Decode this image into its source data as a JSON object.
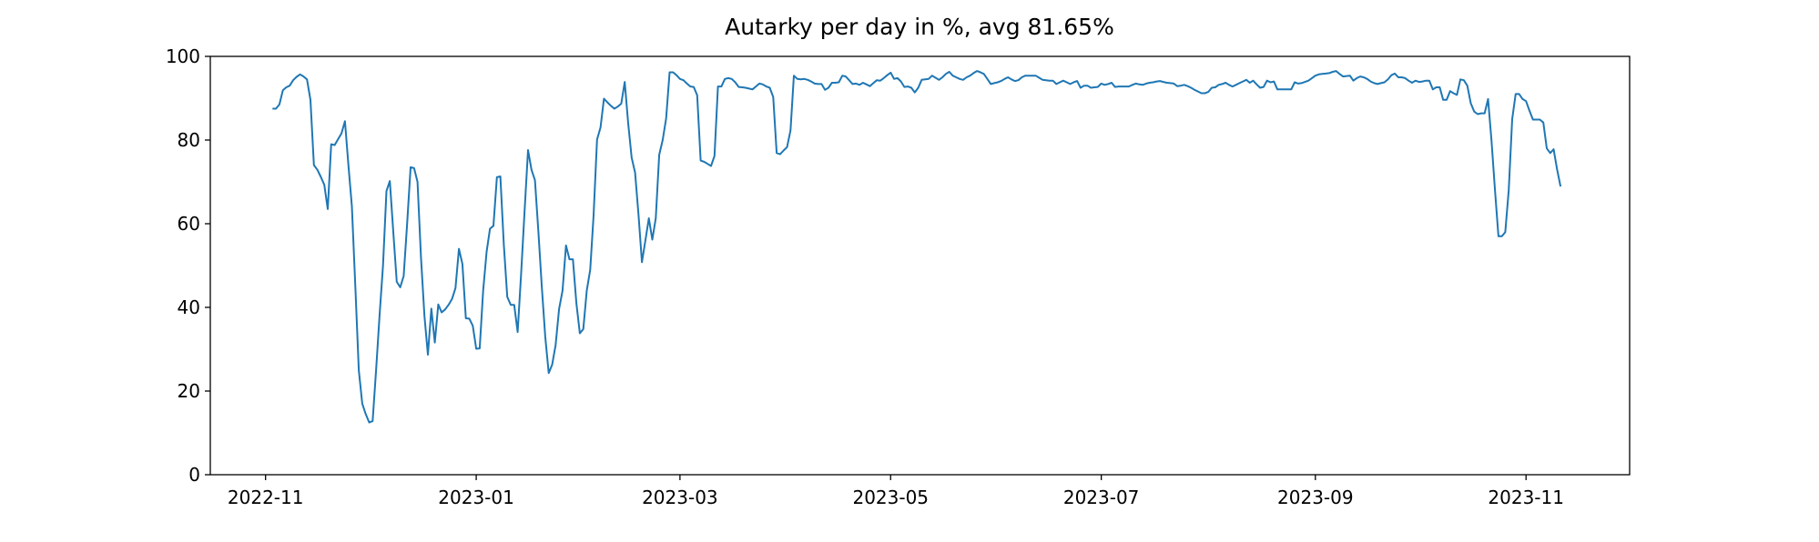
{
  "chart_data": {
    "type": "line",
    "title": "Autarky per day in %, avg 81.65%",
    "xlabel": "",
    "ylabel": "",
    "ylim": [
      0,
      100
    ],
    "xlim": [
      "2022-10-16",
      "2023-12-01"
    ],
    "grid": false,
    "line_color": "#1f77b4",
    "x_ticks": [
      {
        "date": "2022-11-01",
        "label": "2022-11"
      },
      {
        "date": "2023-01-01",
        "label": "2023-01"
      },
      {
        "date": "2023-03-01",
        "label": "2023-03"
      },
      {
        "date": "2023-05-01",
        "label": "2023-05"
      },
      {
        "date": "2023-07-01",
        "label": "2023-07"
      },
      {
        "date": "2023-09-01",
        "label": "2023-09"
      },
      {
        "date": "2023-11-01",
        "label": "2023-11"
      }
    ],
    "y_ticks": [
      {
        "value": 0,
        "label": "0"
      },
      {
        "value": 20,
        "label": "20"
      },
      {
        "value": 40,
        "label": "40"
      },
      {
        "value": 60,
        "label": "60"
      },
      {
        "value": 80,
        "label": "80"
      },
      {
        "value": 100,
        "label": "100"
      }
    ],
    "x": [
      "2022-11-03",
      "2022-11-04",
      "2022-11-05",
      "2022-11-06",
      "2022-11-07",
      "2022-11-08",
      "2022-11-09",
      "2022-11-10",
      "2022-11-11",
      "2022-11-12",
      "2022-11-13",
      "2022-11-14",
      "2022-11-15",
      "2022-11-16",
      "2022-11-17",
      "2022-11-18",
      "2022-11-19",
      "2022-11-20",
      "2022-11-21",
      "2022-11-22",
      "2022-11-23",
      "2022-11-24",
      "2022-11-25",
      "2022-11-26",
      "2022-11-27",
      "2022-11-28",
      "2022-11-29",
      "2022-11-30",
      "2022-12-01",
      "2022-12-02",
      "2022-12-03",
      "2022-12-04",
      "2022-12-05",
      "2022-12-06",
      "2022-12-07",
      "2022-12-08",
      "2022-12-09",
      "2022-12-10",
      "2022-12-11",
      "2022-12-12",
      "2022-12-13",
      "2022-12-14",
      "2022-12-15",
      "2022-12-16",
      "2022-12-17",
      "2022-12-18",
      "2022-12-19",
      "2022-12-20",
      "2022-12-21",
      "2022-12-22",
      "2022-12-23",
      "2022-12-24",
      "2022-12-25",
      "2022-12-26",
      "2022-12-27",
      "2022-12-28",
      "2022-12-29",
      "2022-12-30",
      "2022-12-31",
      "2023-01-01",
      "2023-01-02",
      "2023-01-03",
      "2023-01-04",
      "2023-01-05",
      "2023-01-06",
      "2023-01-07",
      "2023-01-08",
      "2023-01-09",
      "2023-01-10",
      "2023-01-11",
      "2023-01-12",
      "2023-01-13",
      "2023-01-14",
      "2023-01-15",
      "2023-01-16",
      "2023-01-17",
      "2023-01-18",
      "2023-01-19",
      "2023-01-20",
      "2023-01-21",
      "2023-01-22",
      "2023-01-23",
      "2023-01-24",
      "2023-01-25",
      "2023-01-26",
      "2023-01-27",
      "2023-01-28",
      "2023-01-29",
      "2023-01-30",
      "2023-01-31",
      "2023-02-01",
      "2023-02-02",
      "2023-02-03",
      "2023-02-04",
      "2023-02-05",
      "2023-02-06",
      "2023-02-07",
      "2023-02-08",
      "2023-02-09",
      "2023-02-10",
      "2023-02-11",
      "2023-02-12",
      "2023-02-13",
      "2023-02-14",
      "2023-02-15",
      "2023-02-16",
      "2023-02-17",
      "2023-02-18",
      "2023-02-19",
      "2023-02-20",
      "2023-02-21",
      "2023-02-22",
      "2023-02-23",
      "2023-02-24",
      "2023-02-25",
      "2023-02-26",
      "2023-02-27",
      "2023-02-28",
      "2023-03-01",
      "2023-03-02",
      "2023-03-03",
      "2023-03-04",
      "2023-03-05",
      "2023-03-06",
      "2023-03-07",
      "2023-03-08",
      "2023-03-09",
      "2023-03-10",
      "2023-03-11",
      "2023-03-12",
      "2023-03-13",
      "2023-03-14",
      "2023-03-15",
      "2023-03-16",
      "2023-03-17",
      "2023-03-18",
      "2023-03-19",
      "2023-03-20",
      "2023-03-21",
      "2023-03-22",
      "2023-03-23",
      "2023-03-24",
      "2023-03-25",
      "2023-03-26",
      "2023-03-27",
      "2023-03-28",
      "2023-03-29",
      "2023-03-30",
      "2023-03-31",
      "2023-04-01",
      "2023-04-02",
      "2023-04-03",
      "2023-04-04",
      "2023-04-05",
      "2023-04-06",
      "2023-04-07",
      "2023-04-08",
      "2023-04-09",
      "2023-04-10",
      "2023-04-11",
      "2023-04-12",
      "2023-04-13",
      "2023-04-14",
      "2023-04-15",
      "2023-04-16",
      "2023-04-17",
      "2023-04-18",
      "2023-04-19",
      "2023-04-20",
      "2023-04-21",
      "2023-04-22",
      "2023-04-23",
      "2023-04-24",
      "2023-04-25",
      "2023-04-26",
      "2023-04-27",
      "2023-04-28",
      "2023-04-29",
      "2023-04-30",
      "2023-05-01",
      "2023-05-02",
      "2023-05-03",
      "2023-05-04",
      "2023-05-05",
      "2023-05-06",
      "2023-05-07",
      "2023-05-08",
      "2023-05-09",
      "2023-05-10",
      "2023-05-11",
      "2023-05-12",
      "2023-05-13",
      "2023-05-14",
      "2023-05-15",
      "2023-05-16",
      "2023-05-17",
      "2023-05-18",
      "2023-05-19",
      "2023-05-20",
      "2023-05-21",
      "2023-05-22",
      "2023-05-23",
      "2023-05-24",
      "2023-05-25",
      "2023-05-26",
      "2023-05-27",
      "2023-05-28",
      "2023-05-29",
      "2023-05-30",
      "2023-05-31",
      "2023-06-01",
      "2023-06-02",
      "2023-06-03",
      "2023-06-04",
      "2023-06-05",
      "2023-06-06",
      "2023-06-07",
      "2023-06-08",
      "2023-06-09",
      "2023-06-10",
      "2023-06-11",
      "2023-06-12",
      "2023-06-13",
      "2023-06-14",
      "2023-06-15",
      "2023-06-16",
      "2023-06-17",
      "2023-06-18",
      "2023-06-19",
      "2023-06-20",
      "2023-06-21",
      "2023-06-22",
      "2023-06-23",
      "2023-06-24",
      "2023-06-25",
      "2023-06-26",
      "2023-06-27",
      "2023-06-28",
      "2023-06-29",
      "2023-06-30",
      "2023-07-01",
      "2023-07-02",
      "2023-07-03",
      "2023-07-04",
      "2023-07-05",
      "2023-07-06",
      "2023-07-07",
      "2023-07-08",
      "2023-07-09",
      "2023-07-10",
      "2023-07-11",
      "2023-07-12",
      "2023-07-13",
      "2023-07-14",
      "2023-07-15",
      "2023-07-16",
      "2023-07-17",
      "2023-07-18",
      "2023-07-19",
      "2023-07-20",
      "2023-07-21",
      "2023-07-22",
      "2023-07-23",
      "2023-07-24",
      "2023-07-25",
      "2023-07-26",
      "2023-07-27",
      "2023-07-28",
      "2023-07-29",
      "2023-07-30",
      "2023-07-31",
      "2023-08-01",
      "2023-08-02",
      "2023-08-03",
      "2023-08-04",
      "2023-08-05",
      "2023-08-06",
      "2023-08-07",
      "2023-08-08",
      "2023-08-09",
      "2023-08-10",
      "2023-08-11",
      "2023-08-12",
      "2023-08-13",
      "2023-08-14",
      "2023-08-15",
      "2023-08-16",
      "2023-08-17",
      "2023-08-18",
      "2023-08-19",
      "2023-08-20",
      "2023-08-21",
      "2023-08-22",
      "2023-08-23",
      "2023-08-24",
      "2023-08-25",
      "2023-08-26",
      "2023-08-27",
      "2023-08-28",
      "2023-08-29",
      "2023-08-30",
      "2023-08-31",
      "2023-09-01",
      "2023-09-02",
      "2023-09-03",
      "2023-09-04",
      "2023-09-05",
      "2023-09-06",
      "2023-09-07",
      "2023-09-08",
      "2023-09-09",
      "2023-09-10",
      "2023-09-11",
      "2023-09-12",
      "2023-09-13",
      "2023-09-14",
      "2023-09-15",
      "2023-09-16",
      "2023-09-17",
      "2023-09-18",
      "2023-09-19",
      "2023-09-20",
      "2023-09-21",
      "2023-09-22",
      "2023-09-23",
      "2023-09-24",
      "2023-09-25",
      "2023-09-26",
      "2023-09-27",
      "2023-09-28",
      "2023-09-29",
      "2023-09-30",
      "2023-10-01",
      "2023-10-02",
      "2023-10-03",
      "2023-10-04",
      "2023-10-05",
      "2023-10-06",
      "2023-10-07",
      "2023-10-08",
      "2023-10-09",
      "2023-10-10",
      "2023-10-11",
      "2023-10-12",
      "2023-10-13",
      "2023-10-14",
      "2023-10-15",
      "2023-10-16",
      "2023-10-17",
      "2023-10-18",
      "2023-10-19",
      "2023-10-20",
      "2023-10-21",
      "2023-10-22",
      "2023-10-23",
      "2023-10-24",
      "2023-10-25",
      "2023-10-26",
      "2023-10-27",
      "2023-10-28",
      "2023-10-29",
      "2023-10-30",
      "2023-10-31",
      "2023-11-01",
      "2023-11-02",
      "2023-11-03",
      "2023-11-04",
      "2023-11-05",
      "2023-11-06",
      "2023-11-07",
      "2023-11-08",
      "2023-11-09",
      "2023-11-10",
      "2023-11-11"
    ],
    "y": [
      87.5,
      87.5,
      88.5,
      91.9,
      92.6,
      93,
      94.3,
      95.1,
      95.7,
      95.2,
      94.5,
      89.6,
      74,
      72.9,
      71.2,
      69.3,
      63.5,
      79,
      78.8,
      80.2,
      81.6,
      84.5,
      74,
      64.2,
      45,
      25,
      17,
      14.5,
      12.5,
      12.8,
      25,
      38,
      50,
      67.8,
      70.2,
      58,
      46.1,
      44.8,
      47.5,
      60,
      73.5,
      73.3,
      70,
      52,
      38,
      28.7,
      39.7,
      31.6,
      40.7,
      38.8,
      39.5,
      40.6,
      42,
      44.6,
      54,
      50.4,
      37.4,
      37.3,
      35.6,
      30.1,
      30.2,
      44,
      53.3,
      58.8,
      59.5,
      71.1,
      71.3,
      55,
      42.5,
      40.6,
      40.6,
      34.1,
      48,
      63,
      77.6,
      72.9,
      70.4,
      58,
      45,
      33,
      24.3,
      26.3,
      31,
      39.6,
      44,
      54.8,
      51.5,
      51.5,
      41,
      33.8,
      34.8,
      44,
      49,
      62,
      80.1,
      83,
      89.9,
      89,
      88.2,
      87.5,
      88,
      88.7,
      93.9,
      84,
      75.8,
      72.2,
      62,
      50.8,
      56,
      61.3,
      56.2,
      61.3,
      76.5,
      80,
      85.2,
      96.2,
      96.2,
      95.5,
      94.6,
      94.3,
      93.5,
      92.8,
      92.7,
      90.7,
      75.1,
      74.8,
      74.3,
      73.8,
      76.2,
      92.8,
      92.8,
      94.6,
      94.8,
      94.6,
      93.8,
      92.7,
      92.6,
      92.5,
      92.3,
      92.1,
      92.8,
      93.5,
      93.3,
      92.8,
      92.5,
      90.3,
      76.9,
      76.6,
      77.5,
      78.3,
      82.3,
      95.4,
      94.6,
      94.5,
      94.6,
      94.4,
      94,
      93.5,
      93.4,
      93.4,
      92,
      92.5,
      93.7,
      93.7,
      93.8,
      95.4,
      95.2,
      94.3,
      93.4,
      93.5,
      93.2,
      93.7,
      93.3,
      92.9,
      93.6,
      94.3,
      94.2,
      94.8,
      95.5,
      96.1,
      94.6,
      94.8,
      94,
      92.7,
      92.8,
      92.5,
      91.4,
      92.5,
      94.4,
      94.5,
      94.6,
      95.4,
      94.9,
      94.4,
      95,
      95.8,
      96.3,
      95.4,
      95,
      94.6,
      94.4,
      95,
      95.4,
      96,
      96.5,
      96.2,
      95.8,
      94.6,
      93.4,
      93.6,
      93.8,
      94.1,
      94.6,
      95,
      94.5,
      94.1,
      94.3,
      95,
      95.4,
      95.4,
      95.4,
      95.4,
      94.9,
      94.4,
      94.3,
      94.2,
      94.2,
      93.4,
      93.8,
      94.2,
      93.8,
      93.4,
      93.8,
      94.1,
      92.5,
      93,
      93,
      92.5,
      92.6,
      92.7,
      93.5,
      93.2,
      93.4,
      93.7,
      92.7,
      92.8,
      92.8,
      92.8,
      92.8,
      93.2,
      93.5,
      93.3,
      93.2,
      93.5,
      93.7,
      93.8,
      94,
      94.1,
      93.9,
      93.7,
      93.6,
      93.5,
      92.9,
      93,
      93.2,
      92.9,
      92.5,
      92,
      91.6,
      91.2,
      91.2,
      91.5,
      92.5,
      92.6,
      93.2,
      93.4,
      93.7,
      93.2,
      92.8,
      93.2,
      93.6,
      94,
      94.4,
      93.7,
      94.2,
      93.3,
      92.5,
      92.7,
      94.2,
      93.8,
      94,
      92.1,
      92.1,
      92.1,
      92.1,
      92.1,
      93.8,
      93.5,
      93.6,
      93.9,
      94.2,
      94.8,
      95.4,
      95.7,
      95.8,
      95.9,
      96,
      96.3,
      96.5,
      95.8,
      95.2,
      95.3,
      95.4,
      94.2,
      94.8,
      95.2,
      95,
      94.6,
      94,
      93.6,
      93.4,
      93.6,
      93.8,
      94.5,
      95.5,
      95.9,
      95,
      95,
      94.8,
      94.2,
      93.7,
      94.2,
      93.9,
      94,
      94.2,
      94.2,
      92.1,
      92.6,
      92.6,
      89.6,
      89.6,
      91.7,
      91.2,
      90.8,
      94.5,
      94.3,
      93,
      88.8,
      86.8,
      86.2,
      86.4,
      86.4,
      89.8,
      79.8,
      68,
      57,
      57,
      58,
      68,
      85,
      91,
      91,
      89.8,
      89.3,
      87,
      84.9,
      84.9,
      84.9,
      84.2,
      78,
      76.9,
      77.8,
      73,
      68.9
    ]
  }
}
